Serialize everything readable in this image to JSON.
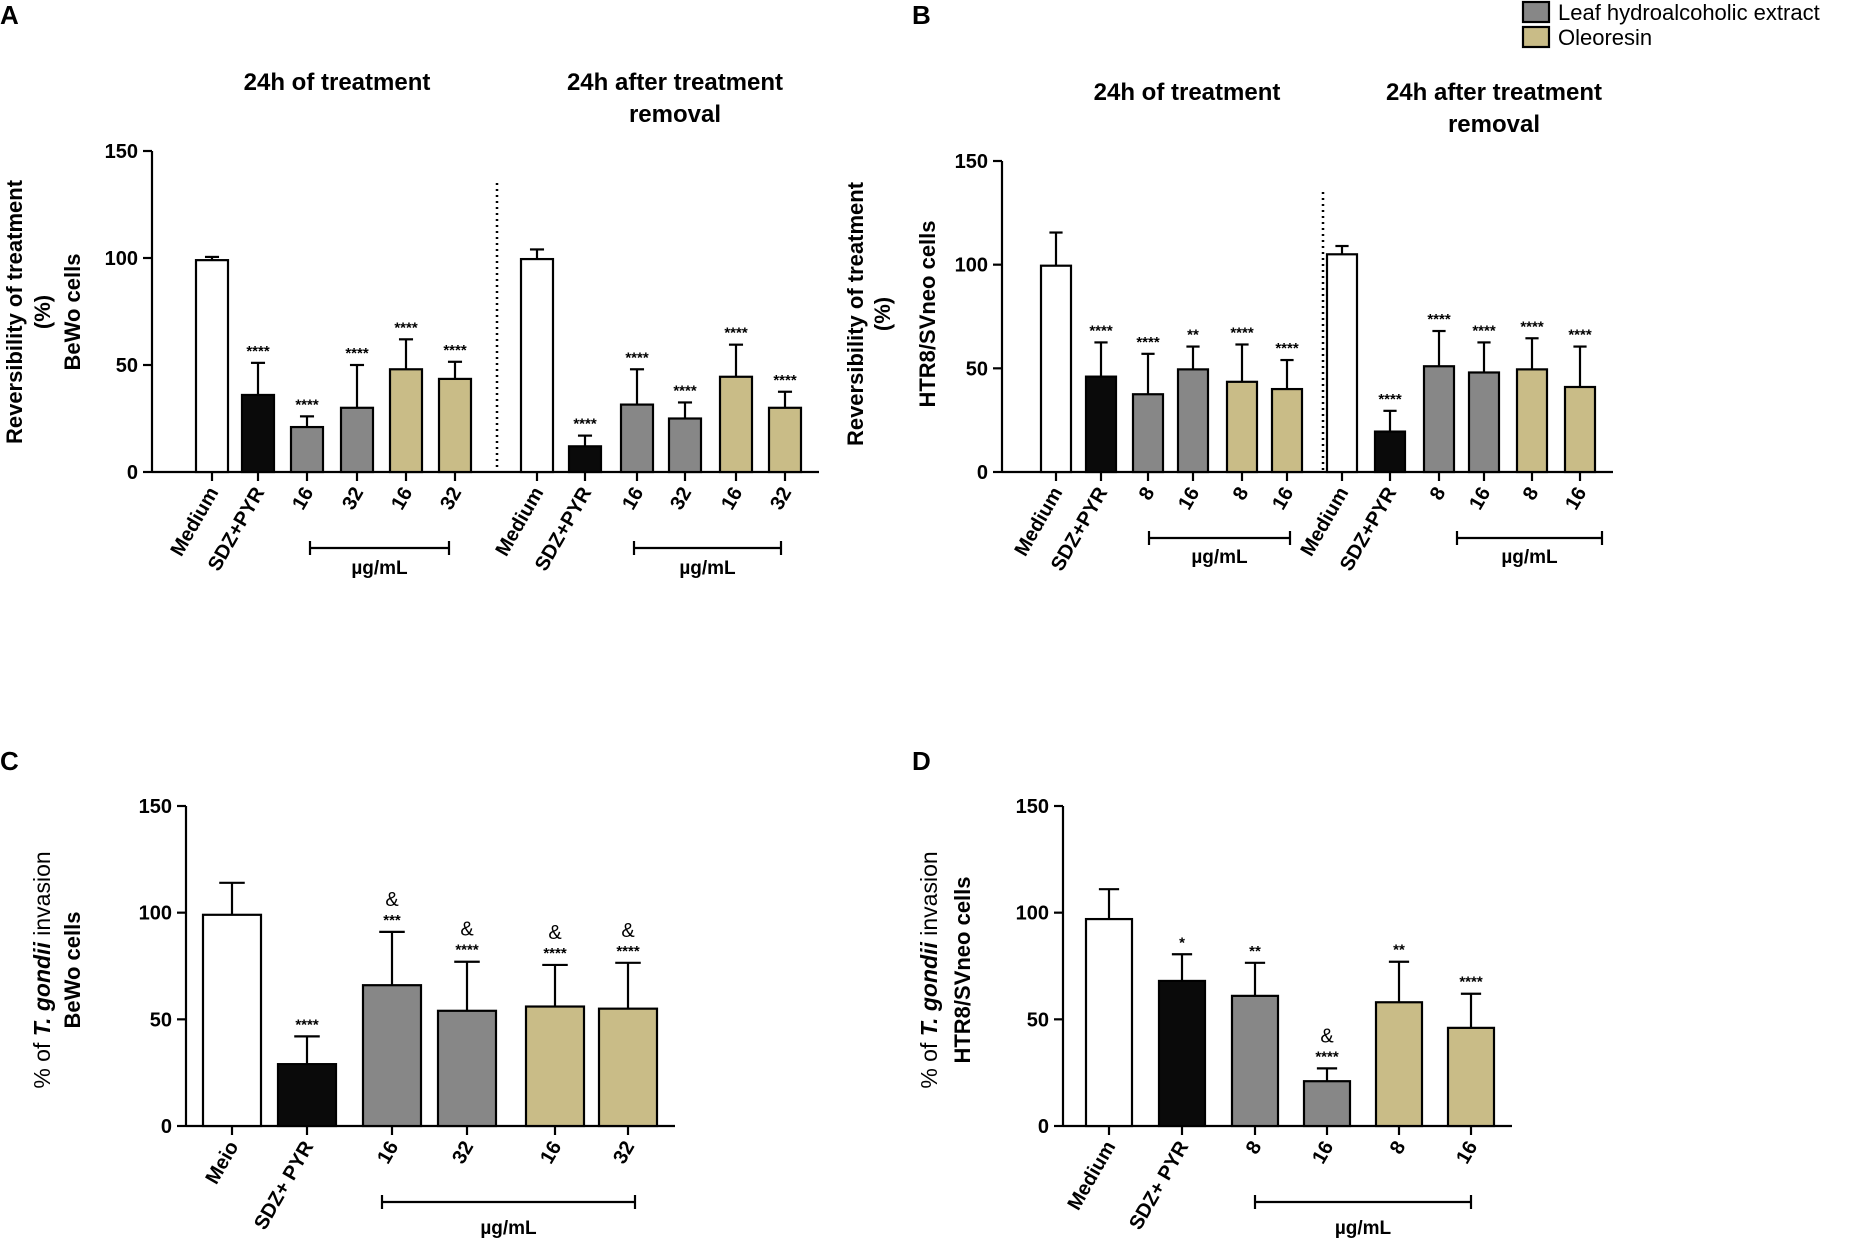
{
  "colors": {
    "medium": "#ffffff",
    "control": "#0a0a0a",
    "leaf_extract": "#878787",
    "oleoresin": "#c9bc87"
  },
  "legend": [
    {
      "label": "Leaf hydroalcoholic extract",
      "color": "#878787"
    },
    {
      "label": "Oleoresin",
      "color": "#c9bc87"
    }
  ],
  "chart_data": [
    {
      "panel": "A",
      "type": "bar",
      "ylabel": [
        "Reversibility of treatment",
        "(%)",
        "BeWo cells"
      ],
      "ylim": [
        0,
        150
      ],
      "yticks": [
        0,
        50,
        100,
        150
      ],
      "groups": [
        {
          "title": [
            "24h of treatment"
          ],
          "unit_label": "µg/mL",
          "bars": [
            {
              "label": "Medium",
              "value": 99,
              "error": 1.5,
              "color": "medium",
              "sig": ""
            },
            {
              "label": "SDZ+PYR",
              "value": 36,
              "error": 15,
              "color": "control",
              "sig": "****"
            },
            {
              "label": "16",
              "value": 21,
              "error": 5,
              "color": "leaf_extract",
              "sig": "****"
            },
            {
              "label": "32",
              "value": 30,
              "error": 20,
              "color": "leaf_extract",
              "sig": "****"
            },
            {
              "label": "16",
              "value": 48,
              "error": 14,
              "color": "oleoresin",
              "sig": "****"
            },
            {
              "label": "32",
              "value": 43.5,
              "error": 8,
              "color": "oleoresin",
              "sig": "****"
            }
          ]
        },
        {
          "title": [
            "24h after treatment",
            "removal"
          ],
          "unit_label": "µg/mL",
          "bars": [
            {
              "label": "Medium",
              "value": 99.5,
              "error": 4.5,
              "color": "medium",
              "sig": ""
            },
            {
              "label": "SDZ+PYR",
              "value": 12,
              "error": 5,
              "color": "control",
              "sig": "****"
            },
            {
              "label": "16",
              "value": 31.5,
              "error": 16.5,
              "color": "leaf_extract",
              "sig": "****"
            },
            {
              "label": "32",
              "value": 25,
              "error": 7.5,
              "color": "leaf_extract",
              "sig": "****"
            },
            {
              "label": "16",
              "value": 44.5,
              "error": 15,
              "color": "oleoresin",
              "sig": "****"
            },
            {
              "label": "32",
              "value": 30,
              "error": 7.5,
              "color": "oleoresin",
              "sig": "****"
            }
          ]
        }
      ]
    },
    {
      "panel": "B",
      "type": "bar",
      "ylabel": [
        "Reversibility of treatment",
        "(%)",
        "HTR8/SVneo cells"
      ],
      "ylim": [
        0,
        150
      ],
      "yticks": [
        0,
        50,
        100,
        150
      ],
      "groups": [
        {
          "title": [
            "24h of treatment"
          ],
          "unit_label": "µg/mL",
          "bars": [
            {
              "label": "Medium",
              "value": 99.5,
              "error": 16,
              "color": "medium",
              "sig": ""
            },
            {
              "label": "SDZ+PYR",
              "value": 46,
              "error": 16.5,
              "color": "control",
              "sig": "****"
            },
            {
              "label": "8",
              "value": 37.5,
              "error": 19.5,
              "color": "leaf_extract",
              "sig": "****"
            },
            {
              "label": "16",
              "value": 49.5,
              "error": 11,
              "color": "leaf_extract",
              "sig": "**"
            },
            {
              "label": "8",
              "value": 43.5,
              "error": 18,
              "color": "oleoresin",
              "sig": "****"
            },
            {
              "label": "16",
              "value": 40,
              "error": 14,
              "color": "oleoresin",
              "sig": "****"
            }
          ]
        },
        {
          "title": [
            "24h after treatment",
            "removal"
          ],
          "unit_label": "µg/mL",
          "bars": [
            {
              "label": "Medium",
              "value": 105,
              "error": 4,
              "color": "medium",
              "sig": ""
            },
            {
              "label": "SDZ+PYR",
              "value": 19.5,
              "error": 10,
              "color": "control",
              "sig": "****"
            },
            {
              "label": "8",
              "value": 51,
              "error": 17,
              "color": "leaf_extract",
              "sig": "****"
            },
            {
              "label": "16",
              "value": 48,
              "error": 14.5,
              "color": "leaf_extract",
              "sig": "****"
            },
            {
              "label": "8",
              "value": 49.5,
              "error": 15,
              "color": "oleoresin",
              "sig": "****"
            },
            {
              "label": "16",
              "value": 41,
              "error": 19.5,
              "color": "oleoresin",
              "sig": "****"
            }
          ]
        }
      ]
    },
    {
      "panel": "C",
      "type": "bar",
      "ylabel_parts": [
        "% of ",
        "T. gondii",
        " invasion"
      ],
      "ylabel_line2": "BeWo cells",
      "ylim": [
        0,
        150
      ],
      "yticks": [
        0,
        50,
        100,
        150
      ],
      "groups": [
        {
          "title": [],
          "unit_label": "µg/mL",
          "bars": [
            {
              "label": "Meio",
              "value": 99,
              "error": 15,
              "color": "medium",
              "sig": "",
              "amp": ""
            },
            {
              "label": "SDZ+ PYR",
              "value": 29,
              "error": 13,
              "color": "control",
              "sig": "****",
              "amp": ""
            },
            {
              "label": "16",
              "value": 66,
              "error": 25,
              "color": "leaf_extract",
              "sig": "***",
              "amp": "&"
            },
            {
              "label": "32",
              "value": 54,
              "error": 23,
              "color": "leaf_extract",
              "sig": "****",
              "amp": "&"
            },
            {
              "label": "16",
              "value": 56,
              "error": 19.5,
              "color": "oleoresin",
              "sig": "****",
              "amp": "&"
            },
            {
              "label": "32",
              "value": 55,
              "error": 21.5,
              "color": "oleoresin",
              "sig": "****",
              "amp": "&"
            }
          ]
        }
      ]
    },
    {
      "panel": "D",
      "type": "bar",
      "ylabel_parts": [
        "% of ",
        "T. gondii",
        " invasion"
      ],
      "ylabel_line2": "HTR8/SVneo cells",
      "ylim": [
        0,
        150
      ],
      "yticks": [
        0,
        50,
        100,
        150
      ],
      "groups": [
        {
          "title": [],
          "unit_label": "µg/mL",
          "bars": [
            {
              "label": "Medium",
              "value": 97,
              "error": 14,
              "color": "medium",
              "sig": "",
              "amp": ""
            },
            {
              "label": "SDZ+ PYR",
              "value": 68,
              "error": 12.5,
              "color": "control",
              "sig": "*",
              "amp": ""
            },
            {
              "label": "8",
              "value": 61,
              "error": 15.5,
              "color": "leaf_extract",
              "sig": "**",
              "amp": ""
            },
            {
              "label": "16",
              "value": 21,
              "error": 6,
              "color": "leaf_extract",
              "sig": "****",
              "amp": "&"
            },
            {
              "label": "8",
              "value": 58,
              "error": 19,
              "color": "oleoresin",
              "sig": "**",
              "amp": ""
            },
            {
              "label": "16",
              "value": 46,
              "error": 16,
              "color": "oleoresin",
              "sig": "****",
              "amp": ""
            }
          ]
        }
      ]
    }
  ]
}
